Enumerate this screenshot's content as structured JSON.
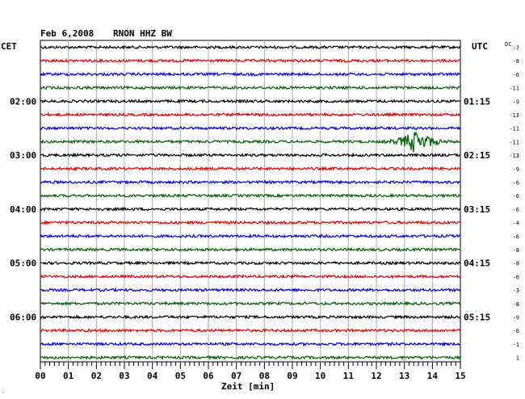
{
  "header": {
    "date": "Feb 6,2008",
    "station": "RNON HHZ BW",
    "left_tz": "CET",
    "right_tz": "UTC",
    "dc_label": "DC"
  },
  "chart_data": {
    "type": "line",
    "title": "Feb 6,2008   RNON HHZ BW",
    "xlabel": "Zeit [min]",
    "xlim": [
      0,
      15
    ],
    "x_ticks": [
      "00",
      "01",
      "02",
      "03",
      "04",
      "05",
      "06",
      "07",
      "08",
      "09",
      "10",
      "11",
      "12",
      "13",
      "14",
      "15"
    ],
    "left_time_labels": [
      {
        "row": 4,
        "label": "02:00"
      },
      {
        "row": 8,
        "label": "03:00"
      },
      {
        "row": 12,
        "label": "04:00"
      },
      {
        "row": 16,
        "label": "05:00"
      },
      {
        "row": 20,
        "label": "06:00"
      }
    ],
    "right_time_labels": [
      {
        "row": 4,
        "label": "01:15"
      },
      {
        "row": 8,
        "label": "02:15"
      },
      {
        "row": 12,
        "label": "03:15"
      },
      {
        "row": 16,
        "label": "04:15"
      },
      {
        "row": 20,
        "label": "05:15"
      }
    ],
    "dc_offsets": [
      "-7",
      "-8",
      "-6",
      "-11",
      "-9",
      "-13",
      "-11",
      "-11",
      "-13",
      "-9",
      "-6",
      "-6",
      "-6",
      "-4",
      "-6",
      "-8",
      "-8",
      "-6",
      "-3",
      "-8",
      "-9",
      "-6",
      "-1",
      "1"
    ],
    "trace_colors": [
      "#000000",
      "#e00000",
      "#0000e0",
      "#006000"
    ],
    "event": {
      "row": 7,
      "start_min": 12.1,
      "peak_min": 13.4,
      "end_min": 14.8,
      "peak_amplitude": 1.0
    }
  }
}
